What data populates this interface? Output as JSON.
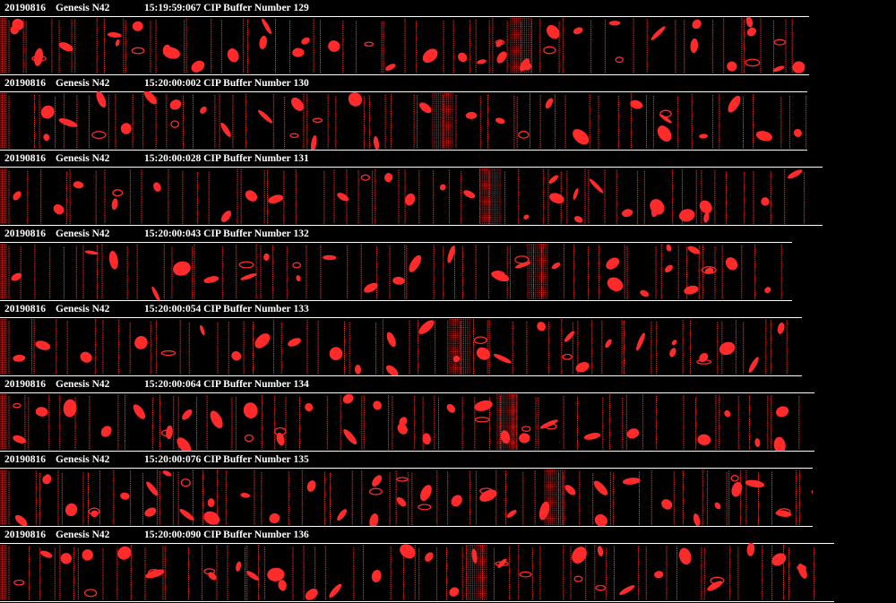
{
  "colors": {
    "background": "#000000",
    "header_text": "#ffffff",
    "particle": "#ff2a2a",
    "baseline": "#ffffff"
  },
  "buffers": [
    {
      "date": "20190816",
      "probe": "Genesis N42",
      "time": "15:19:59:067",
      "label": "CIP Buffer Number",
      "number": "129"
    },
    {
      "date": "20190816",
      "probe": "Genesis N42",
      "time": "15:20:00:002",
      "label": "CIP Buffer Number",
      "number": "130"
    },
    {
      "date": "20190816",
      "probe": "Genesis N42",
      "time": "15:20:00:028",
      "label": "CIP Buffer Number",
      "number": "131"
    },
    {
      "date": "20190816",
      "probe": "Genesis N42",
      "time": "15:20:00:043",
      "label": "CIP Buffer Number",
      "number": "132"
    },
    {
      "date": "20190816",
      "probe": "Genesis N42",
      "time": "15:20:00:054",
      "label": "CIP Buffer Number",
      "number": "133"
    },
    {
      "date": "20190816",
      "probe": "Genesis N42",
      "time": "15:20:00:064",
      "label": "CIP Buffer Number",
      "number": "134"
    },
    {
      "date": "20190816",
      "probe": "Genesis N42",
      "time": "15:20:00:076",
      "label": "CIP Buffer Number",
      "number": "135"
    },
    {
      "date": "20190816",
      "probe": "Genesis N42",
      "time": "15:20:00:090",
      "label": "CIP Buffer Number",
      "number": "136"
    }
  ]
}
